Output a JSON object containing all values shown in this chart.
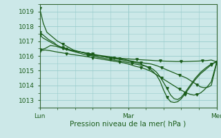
{
  "bg_color": "#cce8e8",
  "plot_bg_color": "#cce8e8",
  "grid_color": "#99cccc",
  "line_color": "#1a5c1a",
  "xlabel": "Pression niveau de la mer( hPa )",
  "xlabel_fontsize": 7.5,
  "tick_fontsize": 6.5,
  "ylim": [
    1012.5,
    1019.5
  ],
  "yticks": [
    1013,
    1014,
    1015,
    1016,
    1017,
    1018,
    1019
  ],
  "xtick_labels": [
    "Lun",
    "Mar",
    "Mer"
  ],
  "xtick_positions": [
    0,
    0.5,
    1.0
  ],
  "series": [
    {
      "x": [
        0.0,
        0.02,
        0.04,
        0.07,
        0.1,
        0.13,
        0.16,
        0.19,
        0.22,
        0.25,
        0.28,
        0.3,
        0.33,
        0.36,
        0.39,
        0.42,
        0.45,
        0.48,
        0.5,
        0.52,
        0.55,
        0.57,
        0.6,
        0.63,
        0.65,
        0.68,
        0.7,
        0.72,
        0.75,
        0.77,
        0.8,
        0.82,
        0.85,
        0.87,
        0.9,
        0.92,
        0.95,
        0.97,
        1.0
      ],
      "y": [
        1019.2,
        1018.2,
        1017.6,
        1017.3,
        1017.0,
        1016.8,
        1016.6,
        1016.4,
        1016.3,
        1016.2,
        1016.1,
        1016.05,
        1016.0,
        1015.95,
        1015.9,
        1015.87,
        1015.84,
        1015.82,
        1015.8,
        1015.78,
        1015.76,
        1015.74,
        1015.72,
        1015.7,
        1015.68,
        1015.66,
        1015.65,
        1015.64,
        1015.63,
        1015.62,
        1015.62,
        1015.62,
        1015.63,
        1015.64,
        1015.65,
        1015.67,
        1015.69,
        1015.72,
        1015.6
      ]
    },
    {
      "x": [
        0.0,
        0.02,
        0.05,
        0.08,
        0.1,
        0.13,
        0.16,
        0.19,
        0.22,
        0.25,
        0.27,
        0.3,
        0.33,
        0.36,
        0.38,
        0.4,
        0.43,
        0.46,
        0.48,
        0.5,
        0.52,
        0.54,
        0.56,
        0.58,
        0.6,
        0.62,
        0.64,
        0.66,
        0.68,
        0.7,
        0.72,
        0.74,
        0.76,
        0.78,
        0.8,
        0.82,
        0.85,
        0.88,
        0.91,
        0.94,
        0.97,
        1.0
      ],
      "y": [
        1017.4,
        1017.2,
        1017.0,
        1016.8,
        1016.7,
        1016.5,
        1016.4,
        1016.3,
        1016.2,
        1016.1,
        1016.05,
        1016.0,
        1015.9,
        1015.85,
        1015.8,
        1015.75,
        1015.7,
        1015.65,
        1015.6,
        1015.55,
        1015.5,
        1015.45,
        1015.4,
        1015.35,
        1015.3,
        1015.22,
        1015.1,
        1014.9,
        1014.6,
        1014.2,
        1013.8,
        1013.35,
        1013.1,
        1013.05,
        1013.2,
        1013.5,
        1014.0,
        1014.5,
        1014.9,
        1015.2,
        1015.45,
        1015.6
      ]
    },
    {
      "x": [
        0.0,
        0.02,
        0.05,
        0.08,
        0.1,
        0.13,
        0.16,
        0.19,
        0.22,
        0.25,
        0.27,
        0.3,
        0.33,
        0.36,
        0.38,
        0.4,
        0.43,
        0.46,
        0.48,
        0.5,
        0.52,
        0.54,
        0.56,
        0.58,
        0.6,
        0.62,
        0.64,
        0.66,
        0.68,
        0.7,
        0.72,
        0.74,
        0.76,
        0.78,
        0.8,
        0.82,
        0.85,
        0.88,
        0.91,
        0.94,
        0.97,
        1.0
      ],
      "y": [
        1017.6,
        1017.4,
        1017.1,
        1016.9,
        1016.7,
        1016.55,
        1016.45,
        1016.35,
        1016.28,
        1016.22,
        1016.15,
        1016.1,
        1016.0,
        1015.95,
        1015.9,
        1015.85,
        1015.8,
        1015.75,
        1015.7,
        1015.65,
        1015.6,
        1015.55,
        1015.5,
        1015.4,
        1015.3,
        1015.15,
        1014.95,
        1014.7,
        1014.3,
        1013.7,
        1013.2,
        1012.9,
        1012.85,
        1012.9,
        1013.1,
        1013.4,
        1013.9,
        1014.4,
        1014.8,
        1015.1,
        1015.4,
        1015.65
      ]
    },
    {
      "x": [
        0.0,
        0.03,
        0.06,
        0.09,
        0.12,
        0.15,
        0.18,
        0.21,
        0.24,
        0.27,
        0.3,
        0.33,
        0.36,
        0.39,
        0.42,
        0.45,
        0.48,
        0.5,
        0.52,
        0.54,
        0.57,
        0.6,
        0.63,
        0.65,
        0.67,
        0.69,
        0.71,
        0.73,
        0.75,
        0.77,
        0.79,
        0.81,
        0.83,
        0.85,
        0.87,
        0.89,
        0.91,
        0.93,
        0.95,
        0.97,
        1.0
      ],
      "y": [
        1016.4,
        1016.5,
        1016.7,
        1016.65,
        1016.55,
        1016.45,
        1016.38,
        1016.3,
        1016.25,
        1016.18,
        1016.12,
        1016.05,
        1016.0,
        1015.95,
        1015.88,
        1015.82,
        1015.76,
        1015.7,
        1015.65,
        1015.6,
        1015.55,
        1015.5,
        1015.45,
        1015.38,
        1015.3,
        1015.2,
        1015.1,
        1015.0,
        1014.9,
        1014.8,
        1014.7,
        1014.6,
        1014.5,
        1014.35,
        1014.2,
        1014.05,
        1013.9,
        1013.85,
        1013.88,
        1014.0,
        1015.5
      ]
    },
    {
      "x": [
        0.0,
        0.03,
        0.06,
        0.09,
        0.12,
        0.15,
        0.18,
        0.21,
        0.24,
        0.27,
        0.3,
        0.33,
        0.36,
        0.39,
        0.42,
        0.45,
        0.48,
        0.5,
        0.52,
        0.54,
        0.57,
        0.6,
        0.63,
        0.65,
        0.67,
        0.69,
        0.71,
        0.73,
        0.75,
        0.77,
        0.79,
        0.81,
        0.83,
        0.85,
        0.87,
        0.89,
        0.91,
        0.93,
        0.95,
        0.97,
        1.0
      ],
      "y": [
        1016.35,
        1016.4,
        1016.35,
        1016.28,
        1016.22,
        1016.16,
        1016.1,
        1016.05,
        1016.0,
        1015.94,
        1015.88,
        1015.82,
        1015.76,
        1015.7,
        1015.64,
        1015.58,
        1015.52,
        1015.45,
        1015.38,
        1015.3,
        1015.22,
        1015.1,
        1014.95,
        1014.8,
        1014.65,
        1014.5,
        1014.35,
        1014.2,
        1014.05,
        1013.9,
        1013.75,
        1013.62,
        1013.5,
        1013.4,
        1013.35,
        1013.38,
        1013.5,
        1013.7,
        1013.95,
        1014.25,
        1015.55
      ]
    }
  ],
  "marker_every": 5,
  "marker_size": 2.5,
  "line_width": 0.9,
  "spine_color": "#336633",
  "bottom_spine_color": "#336633"
}
